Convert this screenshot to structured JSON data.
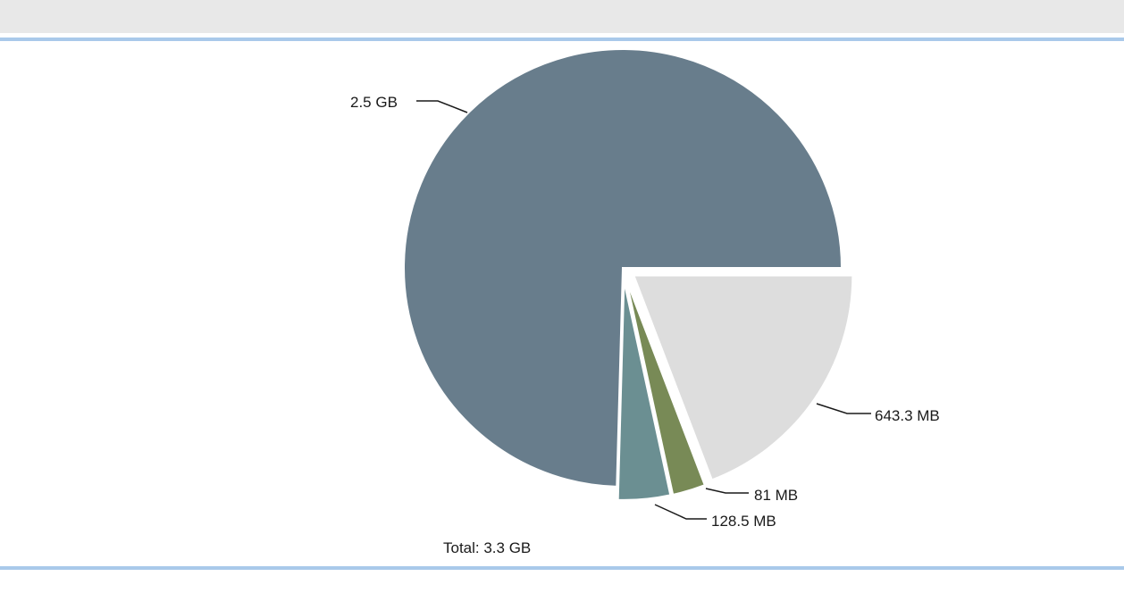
{
  "chart_data": {
    "type": "pie",
    "unit": "MB",
    "slices": [
      {
        "label": "2.5 GB",
        "value": 2500,
        "color": "#687d8c"
      },
      {
        "label": "643.3 MB",
        "value": 643.3,
        "color": "#dddddd"
      },
      {
        "label": "81 MB",
        "value": 81,
        "color": "#788a56"
      },
      {
        "label": "128.5 MB",
        "value": 128.5,
        "color": "#6b8f92"
      }
    ],
    "total_label": "Total: 3.3 GB"
  },
  "colors": {
    "toolbar_bg": "#e8e8e8",
    "rule": "#a9c9ea"
  }
}
